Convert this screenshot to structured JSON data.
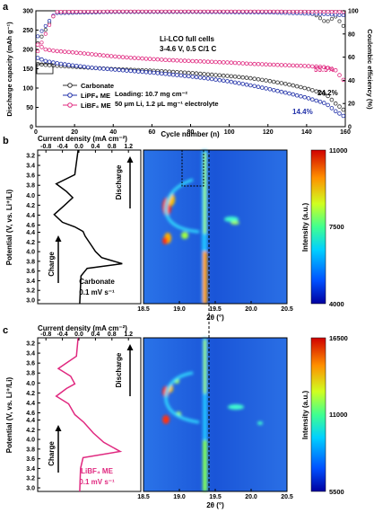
{
  "chart_data": [
    {
      "panel": "a",
      "type": "scatter",
      "xlabel": "Cycle number (n)",
      "ylabel": "Discharge capacity (mAh g⁻¹)",
      "y2label": "Coulombic efficiency (%)",
      "xlim": [
        0,
        160
      ],
      "ylim": [
        0,
        300
      ],
      "y2lim": [
        0,
        100
      ],
      "xticks": [
        "0",
        "20",
        "40",
        "60",
        "80",
        "100",
        "120",
        "140",
        "160"
      ],
      "yticks": [
        "0",
        "50",
        "100",
        "150",
        "200",
        "250",
        "300"
      ],
      "y2ticks": [
        "0",
        "20",
        "40",
        "60",
        "80",
        "100"
      ],
      "annotations": {
        "title1": "Li-LCO full cells",
        "title2": "3-4.6 V, 0.5 C/1 C",
        "loading": "Loading: 10.7 mg cm⁻²",
        "conditions": "50 μm Li, 1.2 μL mg⁻¹ electrolyte",
        "ret_lib": "55.5%",
        "ret_carb": "24.2%",
        "ret_lipf": "14.4%"
      },
      "legend_position": "bottom-left",
      "series": [
        {
          "name": "Carbonate",
          "color": "#333333",
          "x": [
            1,
            5,
            10,
            20,
            30,
            40,
            50,
            60,
            70,
            80,
            90,
            100,
            110,
            120,
            130,
            140,
            150,
            155,
            160
          ],
          "y": [
            162,
            160,
            158,
            155,
            152,
            149,
            147,
            145,
            142,
            139,
            135,
            131,
            126,
            119,
            110,
            99,
            84,
            60,
            40
          ]
        },
        {
          "name": "LiPF₆ ME",
          "color": "#1f2fa8",
          "x": [
            1,
            5,
            10,
            20,
            30,
            40,
            50,
            60,
            70,
            80,
            90,
            100,
            110,
            120,
            130,
            140,
            150,
            155,
            160
          ],
          "y": [
            178,
            170,
            165,
            158,
            152,
            148,
            144,
            140,
            135,
            130,
            124,
            117,
            108,
            98,
            87,
            75,
            60,
            40,
            25
          ]
        },
        {
          "name": "LiBF₄ ME",
          "color": "#e0287f",
          "x": [
            1,
            5,
            10,
            20,
            30,
            40,
            50,
            60,
            70,
            80,
            90,
            100,
            110,
            120,
            130,
            140,
            150,
            155,
            160
          ],
          "y": [
            212,
            200,
            196,
            192,
            187,
            182,
            178,
            175,
            172,
            170,
            168,
            166,
            163,
            161,
            159,
            157,
            154,
            146,
            115
          ]
        }
      ],
      "ce_series": [
        {
          "name": "Carbonate CE",
          "color": "#333333",
          "x": [
            1,
            10,
            40,
            80,
            120,
            140,
            145,
            150,
            155,
            160
          ],
          "y": [
            72,
            98,
            99,
            99,
            99,
            99,
            96,
            90,
            95,
            85
          ]
        },
        {
          "name": "LiPF₆ CE",
          "color": "#1f2fa8",
          "x": [
            1,
            10,
            40,
            80,
            120,
            150,
            160
          ],
          "y": [
            78,
            98,
            99,
            99,
            98.5,
            97,
            96
          ]
        },
        {
          "name": "LiBF₄ CE",
          "color": "#e0287f",
          "x": [
            1,
            10,
            40,
            80,
            120,
            150,
            160
          ],
          "y": [
            65,
            99,
            99.4,
            99.4,
            99.4,
            99.2,
            99
          ]
        }
      ]
    },
    {
      "panel": "b",
      "type": "line+heatmap",
      "cv_xlabel": "Current density (mA cm⁻²)",
      "cv_xticks": [
        "-0.8",
        "-0.4",
        "0.0",
        "0.4",
        "0.8",
        "1.2"
      ],
      "ylabel": "Potential (V, vs. Li⁺/Li)",
      "yticks_top": [
        "3.2",
        "3.4",
        "3.6",
        "3.8",
        "4.0",
        "4.2",
        "4.4",
        "4.6"
      ],
      "yticks_bottom": [
        "4.4",
        "4.2",
        "4.0",
        "3.8",
        "3.6",
        "3.4",
        "3.2",
        "3.0"
      ],
      "xrd_xlabel": "2θ (°)",
      "xrd_xticks": [
        "18.5",
        "19.0",
        "19.5",
        "20.0",
        "20.5"
      ],
      "colorbar_label": "Intensity (a.u.)",
      "colorbar_ticks": [
        "11000",
        "7500",
        "4000"
      ],
      "electrolyte": "Carbonate",
      "rate": "0.1 mV s⁻¹",
      "discharge": "Discharge",
      "charge": "Charge",
      "cv_color": "#000000"
    },
    {
      "panel": "c",
      "type": "line+heatmap",
      "cv_xlabel": "Current density (mA cm⁻²)",
      "cv_xticks": [
        "-0.8",
        "-0.4",
        "0.0",
        "0.4",
        "0.8",
        "1.2"
      ],
      "ylabel": "Potential (V, vs. Li⁺/Li)",
      "yticks_top": [
        "3.2",
        "3.4",
        "3.6",
        "3.8",
        "4.0",
        "4.2",
        "4.4",
        "4.6"
      ],
      "yticks_bottom": [
        "4.4",
        "4.2",
        "4.0",
        "3.8",
        "3.6",
        "3.4",
        "3.2",
        "3.0"
      ],
      "xrd_xlabel": "2θ (°)",
      "xrd_xticks": [
        "18.5",
        "19.0",
        "19.5",
        "20.0",
        "20.5"
      ],
      "colorbar_label": "Intensity (a.u.)",
      "colorbar_ticks": [
        "16500",
        "11000",
        "5500"
      ],
      "electrolyte": "LiBF₄ ME",
      "rate": "0.1 mV s⁻¹",
      "discharge": "Discharge",
      "charge": "Charge",
      "cv_color": "#e0287f"
    }
  ],
  "panel_labels": [
    "a",
    "b",
    "c"
  ]
}
